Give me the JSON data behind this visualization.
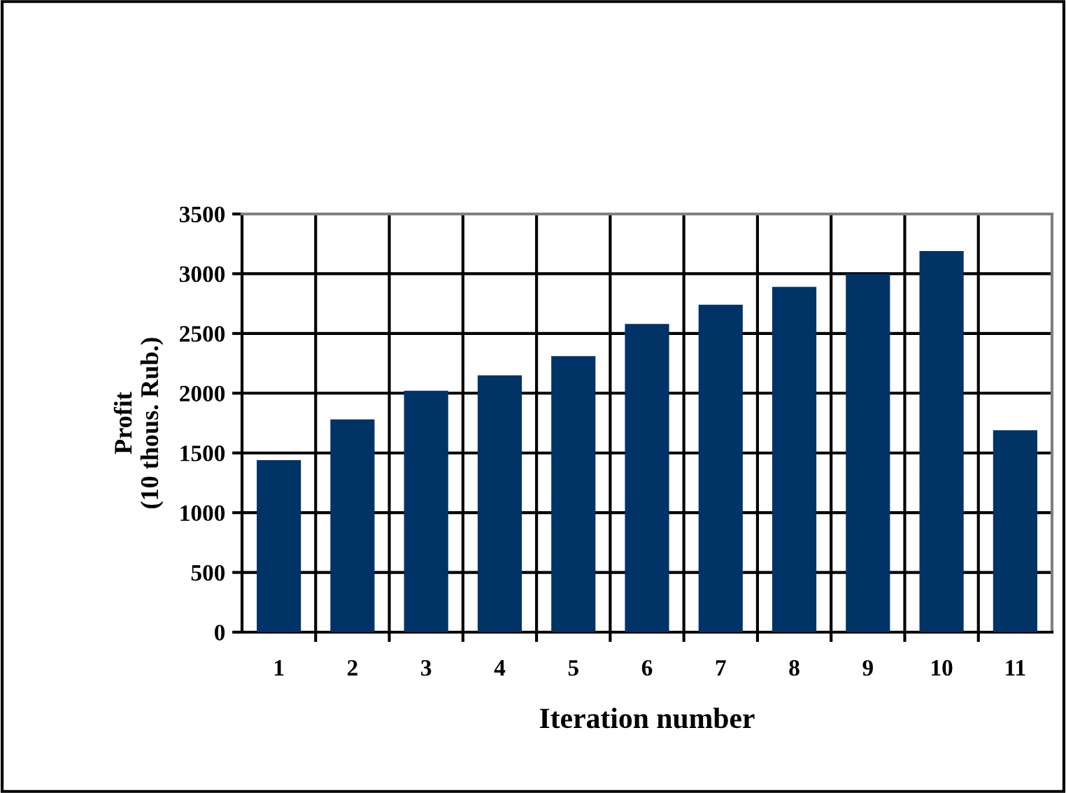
{
  "chart_data": {
    "type": "bar",
    "xlabel": "Iteration number",
    "ylabel": "Profit\n(10 thous. Rub.)",
    "categories": [
      "1",
      "2",
      "3",
      "4",
      "5",
      "6",
      "7",
      "8",
      "9",
      "10",
      "11"
    ],
    "values": [
      1440,
      1780,
      2020,
      2150,
      2310,
      2580,
      2740,
      2890,
      3000,
      3190,
      1690
    ],
    "color": "#003366",
    "ylim": [
      0,
      3500
    ],
    "yticks": [
      0,
      500,
      1000,
      1500,
      2000,
      2500,
      3000,
      3500
    ],
    "grid": true
  }
}
